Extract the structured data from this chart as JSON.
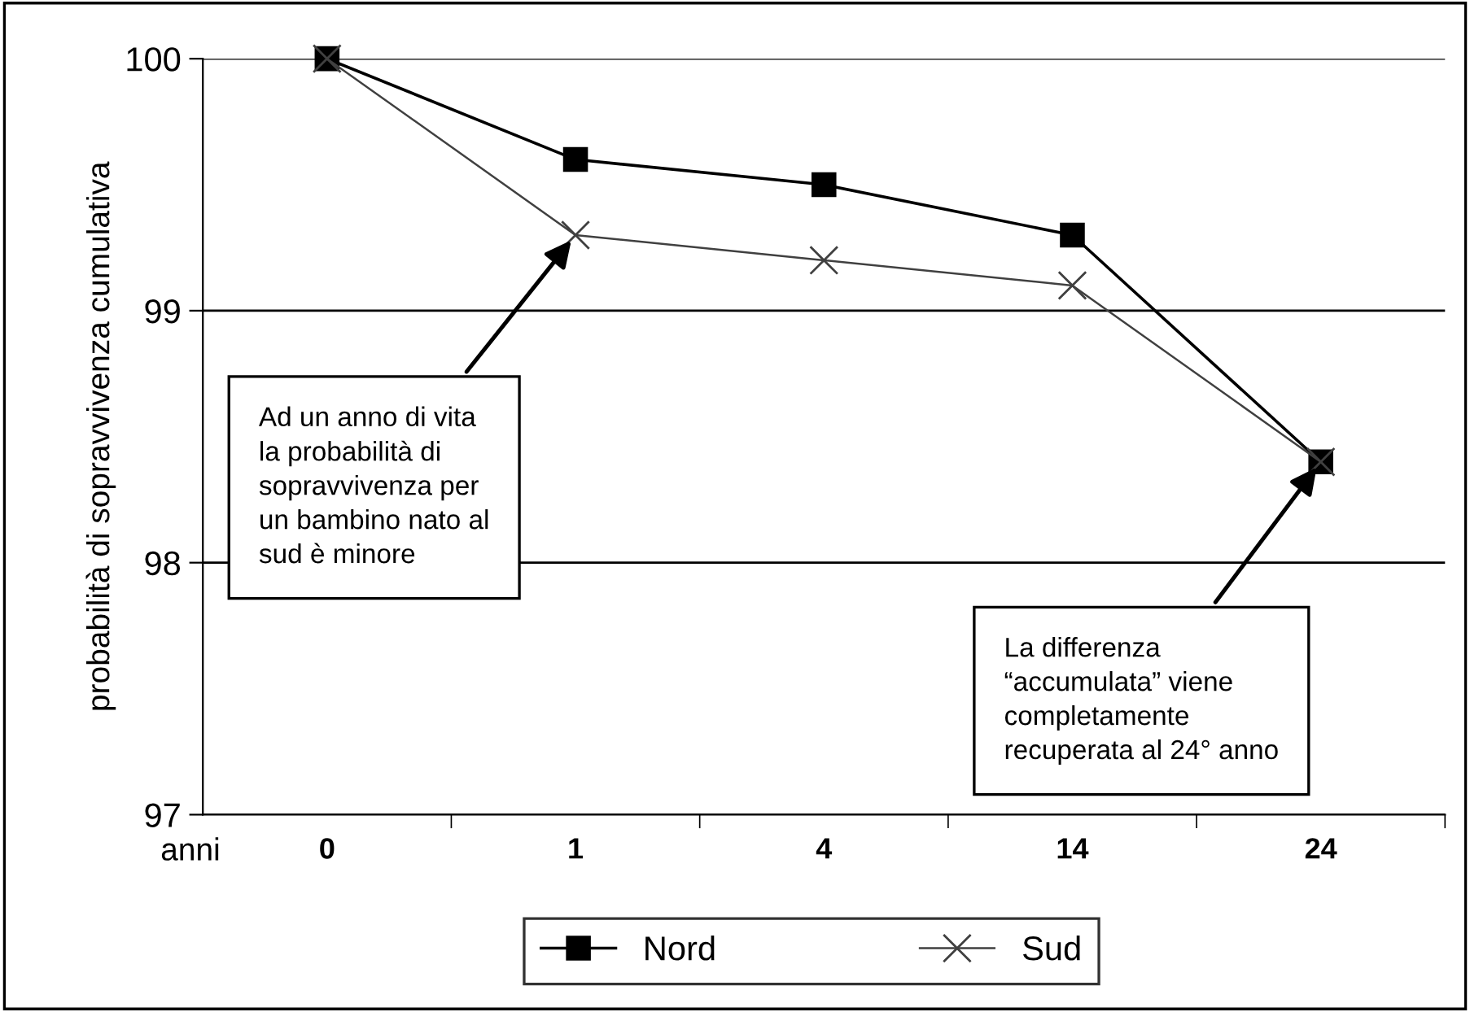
{
  "chart_data": {
    "type": "line",
    "ylabel": "probabilità di sopravvivenza cumulativa",
    "xlabel": "anni",
    "categories": [
      "0",
      "1",
      "4",
      "14",
      "24"
    ],
    "series": [
      {
        "name": "Nord",
        "color": "#000000",
        "marker": "square",
        "values": [
          100,
          99.6,
          99.5,
          99.3,
          98.4
        ]
      },
      {
        "name": "Sud",
        "color": "#404040",
        "marker": "cross",
        "values": [
          100,
          99.3,
          99.2,
          99.1,
          98.4
        ]
      }
    ],
    "ylim": [
      97,
      100
    ],
    "yticks": [
      97,
      98,
      99,
      100
    ],
    "grid": "y",
    "legend": "bottom",
    "line_style": "solid",
    "annotations": [
      {
        "text": "Ad un anno di vita\nla probabilità di\nsopravvivenza per\nun bambino nato al\nsud è minore",
        "x": "1",
        "y": 99.3
      },
      {
        "text": "La differenza\n“accumulata” viene\ncompletamente\nrecuperata al 24° anno",
        "x": "24",
        "y": 98.4
      }
    ]
  }
}
